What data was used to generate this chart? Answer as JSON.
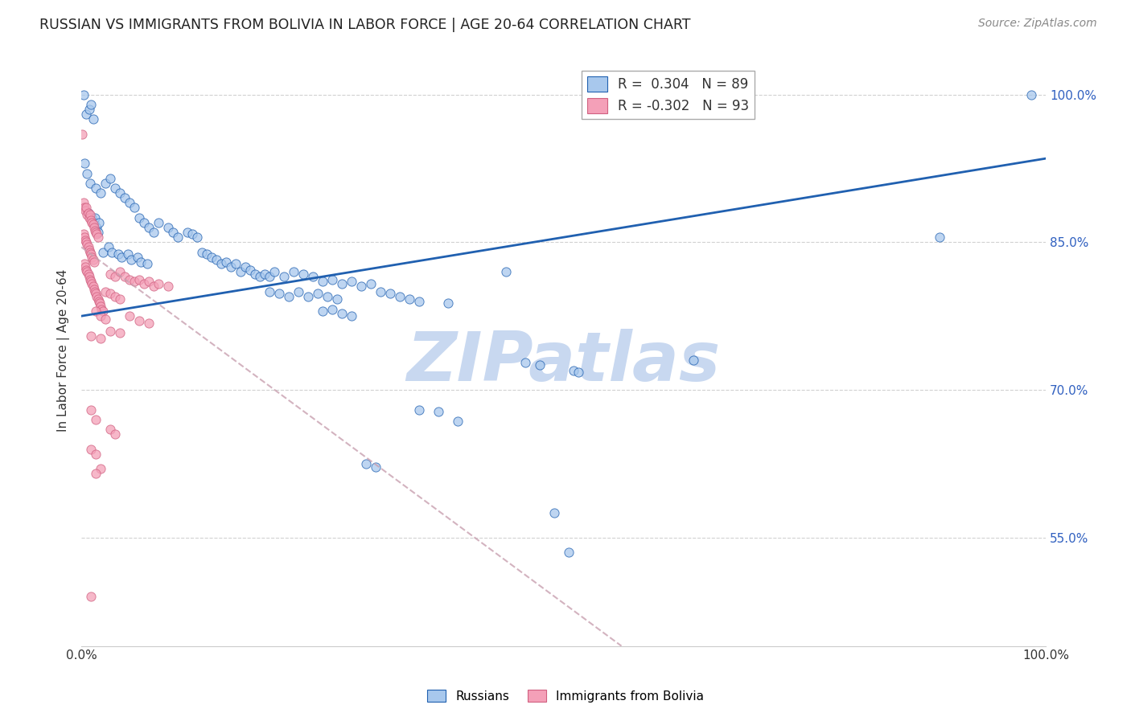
{
  "title": "RUSSIAN VS IMMIGRANTS FROM BOLIVIA IN LABOR FORCE | AGE 20-64 CORRELATION CHART",
  "source": "Source: ZipAtlas.com",
  "ylabel": "In Labor Force | Age 20-64",
  "xlim": [
    0.0,
    1.0
  ],
  "ylim": [
    0.44,
    1.04
  ],
  "yticks": [
    0.55,
    0.7,
    0.85,
    1.0
  ],
  "ytick_labels": [
    "55.0%",
    "70.0%",
    "85.0%",
    "100.0%"
  ],
  "xticks": [
    0.0,
    0.1,
    0.2,
    0.3,
    0.4,
    0.5,
    0.6,
    0.7,
    0.8,
    0.9,
    1.0
  ],
  "xtick_labels": [
    "0.0%",
    "",
    "",
    "",
    "",
    "",
    "",
    "",
    "",
    "",
    "100.0%"
  ],
  "legend_r_russian": "0.304",
  "legend_n_russian": "89",
  "legend_r_bolivia": "-0.302",
  "legend_n_bolivia": "93",
  "color_russian": "#A8C8ED",
  "color_bolivia": "#F4A0B8",
  "color_russian_line": "#2060B0",
  "color_bolivia_line": "#E06070",
  "watermark": "ZIPatlas",
  "watermark_color": "#C8D8F0",
  "russian_line_x": [
    0.0,
    1.0
  ],
  "russian_line_y": [
    0.775,
    0.935
  ],
  "bolivia_line_x": [
    0.0,
    0.56
  ],
  "bolivia_line_y": [
    0.845,
    0.44
  ],
  "russian_scatter": [
    [
      0.002,
      1.0
    ],
    [
      0.005,
      0.98
    ],
    [
      0.008,
      0.985
    ],
    [
      0.01,
      0.99
    ],
    [
      0.012,
      0.975
    ],
    [
      0.003,
      0.93
    ],
    [
      0.006,
      0.92
    ],
    [
      0.009,
      0.91
    ],
    [
      0.015,
      0.905
    ],
    [
      0.02,
      0.9
    ],
    [
      0.025,
      0.91
    ],
    [
      0.03,
      0.915
    ],
    [
      0.035,
      0.905
    ],
    [
      0.04,
      0.9
    ],
    [
      0.045,
      0.895
    ],
    [
      0.05,
      0.89
    ],
    [
      0.055,
      0.885
    ],
    [
      0.007,
      0.88
    ],
    [
      0.011,
      0.875
    ],
    [
      0.013,
      0.87
    ],
    [
      0.014,
      0.875
    ],
    [
      0.016,
      0.865
    ],
    [
      0.017,
      0.86
    ],
    [
      0.018,
      0.87
    ],
    [
      0.06,
      0.875
    ],
    [
      0.065,
      0.87
    ],
    [
      0.07,
      0.865
    ],
    [
      0.075,
      0.86
    ],
    [
      0.08,
      0.87
    ],
    [
      0.09,
      0.865
    ],
    [
      0.095,
      0.86
    ],
    [
      0.1,
      0.855
    ],
    [
      0.11,
      0.86
    ],
    [
      0.115,
      0.858
    ],
    [
      0.12,
      0.855
    ],
    [
      0.022,
      0.84
    ],
    [
      0.028,
      0.845
    ],
    [
      0.032,
      0.84
    ],
    [
      0.038,
      0.838
    ],
    [
      0.042,
      0.835
    ],
    [
      0.048,
      0.838
    ],
    [
      0.052,
      0.832
    ],
    [
      0.058,
      0.835
    ],
    [
      0.062,
      0.83
    ],
    [
      0.068,
      0.828
    ],
    [
      0.125,
      0.84
    ],
    [
      0.13,
      0.838
    ],
    [
      0.135,
      0.835
    ],
    [
      0.14,
      0.832
    ],
    [
      0.145,
      0.828
    ],
    [
      0.15,
      0.83
    ],
    [
      0.155,
      0.825
    ],
    [
      0.16,
      0.828
    ],
    [
      0.165,
      0.82
    ],
    [
      0.17,
      0.825
    ],
    [
      0.175,
      0.822
    ],
    [
      0.18,
      0.818
    ],
    [
      0.185,
      0.815
    ],
    [
      0.19,
      0.818
    ],
    [
      0.195,
      0.815
    ],
    [
      0.2,
      0.82
    ],
    [
      0.21,
      0.815
    ],
    [
      0.22,
      0.82
    ],
    [
      0.23,
      0.818
    ],
    [
      0.24,
      0.815
    ],
    [
      0.25,
      0.81
    ],
    [
      0.26,
      0.812
    ],
    [
      0.27,
      0.808
    ],
    [
      0.28,
      0.81
    ],
    [
      0.29,
      0.805
    ],
    [
      0.3,
      0.808
    ],
    [
      0.195,
      0.8
    ],
    [
      0.205,
      0.798
    ],
    [
      0.215,
      0.795
    ],
    [
      0.225,
      0.8
    ],
    [
      0.235,
      0.795
    ],
    [
      0.245,
      0.798
    ],
    [
      0.255,
      0.795
    ],
    [
      0.265,
      0.792
    ],
    [
      0.31,
      0.8
    ],
    [
      0.32,
      0.798
    ],
    [
      0.33,
      0.795
    ],
    [
      0.34,
      0.792
    ],
    [
      0.35,
      0.79
    ],
    [
      0.38,
      0.788
    ],
    [
      0.25,
      0.78
    ],
    [
      0.26,
      0.782
    ],
    [
      0.27,
      0.778
    ],
    [
      0.28,
      0.775
    ],
    [
      0.44,
      0.82
    ],
    [
      0.46,
      0.728
    ],
    [
      0.475,
      0.725
    ],
    [
      0.49,
      0.575
    ],
    [
      0.505,
      0.535
    ],
    [
      0.635,
      0.73
    ],
    [
      0.51,
      0.72
    ],
    [
      0.515,
      0.718
    ],
    [
      0.35,
      0.68
    ],
    [
      0.37,
      0.678
    ],
    [
      0.39,
      0.668
    ],
    [
      0.295,
      0.625
    ],
    [
      0.305,
      0.622
    ],
    [
      0.89,
      0.855
    ],
    [
      0.985,
      1.0
    ]
  ],
  "bolivia_scatter": [
    [
      0.001,
      0.96
    ],
    [
      0.002,
      0.89
    ],
    [
      0.003,
      0.885
    ],
    [
      0.004,
      0.882
    ],
    [
      0.005,
      0.885
    ],
    [
      0.006,
      0.878
    ],
    [
      0.007,
      0.88
    ],
    [
      0.008,
      0.875
    ],
    [
      0.009,
      0.878
    ],
    [
      0.01,
      0.872
    ],
    [
      0.011,
      0.87
    ],
    [
      0.012,
      0.868
    ],
    [
      0.013,
      0.865
    ],
    [
      0.014,
      0.862
    ],
    [
      0.015,
      0.86
    ],
    [
      0.016,
      0.858
    ],
    [
      0.017,
      0.855
    ],
    [
      0.002,
      0.858
    ],
    [
      0.003,
      0.855
    ],
    [
      0.004,
      0.852
    ],
    [
      0.005,
      0.85
    ],
    [
      0.006,
      0.848
    ],
    [
      0.007,
      0.845
    ],
    [
      0.008,
      0.842
    ],
    [
      0.009,
      0.84
    ],
    [
      0.01,
      0.838
    ],
    [
      0.011,
      0.835
    ],
    [
      0.012,
      0.832
    ],
    [
      0.013,
      0.83
    ],
    [
      0.003,
      0.828
    ],
    [
      0.004,
      0.825
    ],
    [
      0.005,
      0.822
    ],
    [
      0.006,
      0.82
    ],
    [
      0.007,
      0.818
    ],
    [
      0.008,
      0.815
    ],
    [
      0.009,
      0.812
    ],
    [
      0.01,
      0.81
    ],
    [
      0.011,
      0.808
    ],
    [
      0.012,
      0.805
    ],
    [
      0.013,
      0.802
    ],
    [
      0.014,
      0.8
    ],
    [
      0.015,
      0.798
    ],
    [
      0.016,
      0.795
    ],
    [
      0.017,
      0.792
    ],
    [
      0.018,
      0.79
    ],
    [
      0.019,
      0.788
    ],
    [
      0.02,
      0.785
    ],
    [
      0.021,
      0.782
    ],
    [
      0.022,
      0.78
    ],
    [
      0.03,
      0.818
    ],
    [
      0.035,
      0.815
    ],
    [
      0.04,
      0.82
    ],
    [
      0.045,
      0.815
    ],
    [
      0.05,
      0.812
    ],
    [
      0.055,
      0.81
    ],
    [
      0.06,
      0.812
    ],
    [
      0.065,
      0.808
    ],
    [
      0.07,
      0.81
    ],
    [
      0.075,
      0.805
    ],
    [
      0.08,
      0.808
    ],
    [
      0.09,
      0.805
    ],
    [
      0.025,
      0.8
    ],
    [
      0.03,
      0.798
    ],
    [
      0.035,
      0.795
    ],
    [
      0.04,
      0.792
    ],
    [
      0.015,
      0.78
    ],
    [
      0.02,
      0.775
    ],
    [
      0.025,
      0.772
    ],
    [
      0.05,
      0.775
    ],
    [
      0.06,
      0.77
    ],
    [
      0.07,
      0.768
    ],
    [
      0.03,
      0.76
    ],
    [
      0.04,
      0.758
    ],
    [
      0.01,
      0.755
    ],
    [
      0.02,
      0.752
    ],
    [
      0.01,
      0.68
    ],
    [
      0.015,
      0.67
    ],
    [
      0.03,
      0.66
    ],
    [
      0.035,
      0.655
    ],
    [
      0.01,
      0.64
    ],
    [
      0.015,
      0.635
    ],
    [
      0.02,
      0.62
    ],
    [
      0.015,
      0.615
    ],
    [
      0.01,
      0.49
    ]
  ]
}
